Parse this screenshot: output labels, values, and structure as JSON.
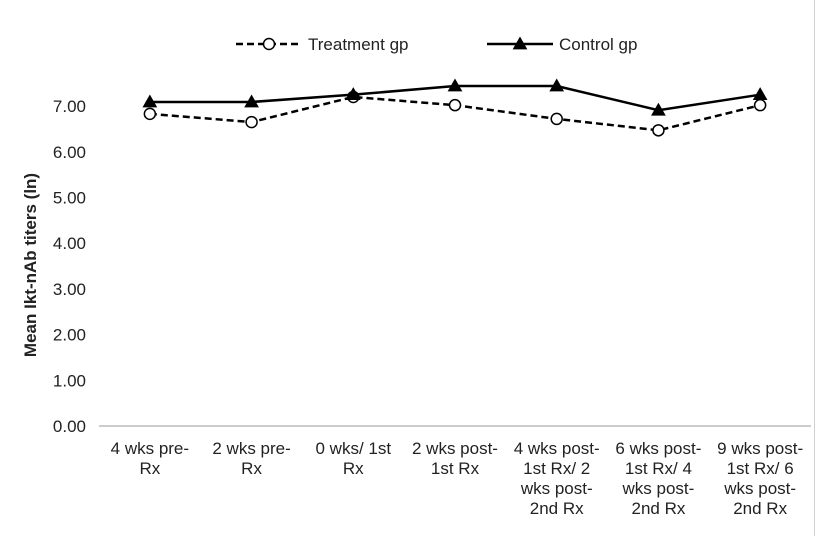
{
  "chart_data": {
    "type": "line",
    "title": "",
    "xlabel": "",
    "ylabel": "Mean Ikt-nAb titers (ln)",
    "ylim": [
      0,
      7.5
    ],
    "yticks": [
      "0.00",
      "1.00",
      "2.00",
      "3.00",
      "4.00",
      "5.00",
      "6.00",
      "7.00"
    ],
    "grid": false,
    "legend_position": "top",
    "categories": [
      [
        "4 wks pre-",
        "Rx"
      ],
      [
        "2 wks pre-",
        "Rx"
      ],
      [
        "0 wks/ 1st",
        "Rx"
      ],
      [
        "2 wks post-",
        "1st Rx"
      ],
      [
        "4 wks post-",
        "1st Rx/ 2",
        "wks post-",
        "2nd Rx"
      ],
      [
        "6 wks post-",
        "1st Rx/ 4",
        "wks post-",
        "2nd Rx"
      ],
      [
        "9 wks post-",
        "1st Rx/ 6",
        "wks post-",
        "2nd Rx"
      ]
    ],
    "series": [
      {
        "name": "Treatment gp",
        "values": [
          6.83,
          6.65,
          7.2,
          7.02,
          6.72,
          6.47,
          7.02
        ],
        "line_style": "dashed",
        "marker": "open-circle",
        "color": "#000000"
      },
      {
        "name": "Control gp",
        "values": [
          7.09,
          7.09,
          7.25,
          7.44,
          7.44,
          6.91,
          7.25
        ],
        "line_style": "solid",
        "marker": "filled-triangle",
        "color": "#000000"
      }
    ]
  }
}
